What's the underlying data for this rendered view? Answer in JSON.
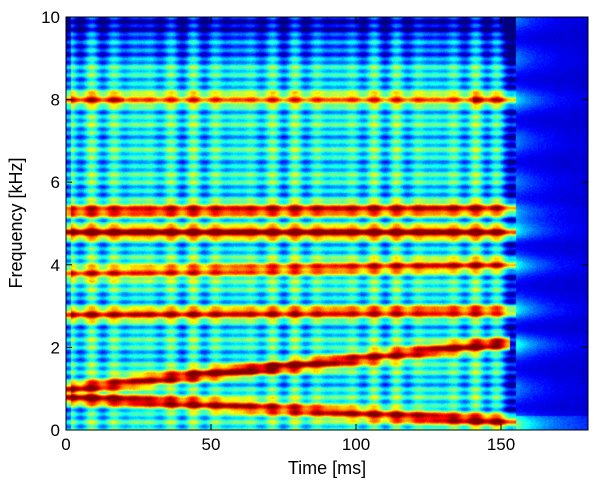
{
  "chart_data": {
    "type": "heatmap",
    "title": "",
    "xlabel": "Time [ms]",
    "ylabel": "Frequency [kHz]",
    "xlim": [
      0,
      180
    ],
    "ylim": [
      0,
      10
    ],
    "x_ticks": [
      0,
      50,
      100,
      150
    ],
    "y_ticks": [
      0,
      2,
      4,
      6,
      8,
      10
    ],
    "colormap": "jet",
    "grid": false,
    "sound_offset_ms": 155,
    "formant_tracks": [
      {
        "start_khz": 8.0,
        "end_khz": 8.0,
        "t_end_ms": 155,
        "strength": 0.55,
        "bright_end": true
      },
      {
        "start_khz": 5.3,
        "end_khz": 5.35,
        "t_end_ms": 155,
        "strength": 0.85
      },
      {
        "start_khz": 4.8,
        "end_khz": 4.8,
        "t_end_ms": 155,
        "strength": 0.95
      },
      {
        "start_khz": 3.8,
        "end_khz": 4.0,
        "t_end_ms": 155,
        "strength": 0.8
      },
      {
        "start_khz": 2.8,
        "end_khz": 2.9,
        "t_end_ms": 155,
        "strength": 0.75
      },
      {
        "start_khz": 1.0,
        "end_khz": 2.1,
        "t_end_ms": 150,
        "strength": 1.0
      },
      {
        "start_khz": 0.8,
        "end_khz": 0.2,
        "t_end_ms": 158,
        "strength": 0.95
      }
    ],
    "colors": {
      "background": "#00009c",
      "low": "#00ffff",
      "mid": "#ffff00",
      "high": "#ff0000",
      "peak": "#800000"
    }
  }
}
